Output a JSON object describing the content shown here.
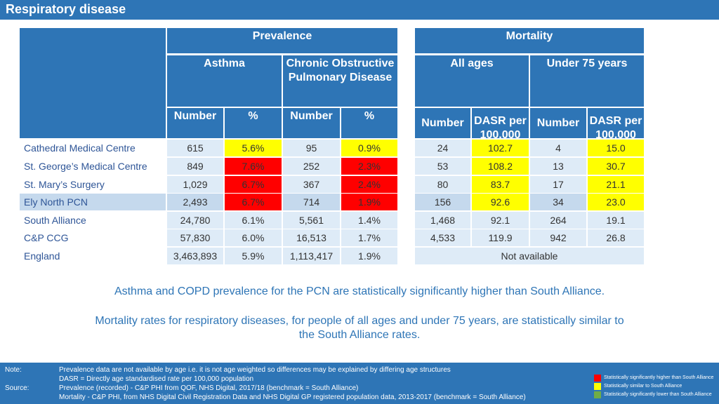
{
  "title": "Respiratory disease",
  "headers": {
    "prevalence": "Prevalence",
    "mortality": "Mortality",
    "asthma": "Asthma",
    "copd": "Chronic Obstructive Pulmonary Disease",
    "all_ages": "All ages",
    "under75": "Under 75 years",
    "number": "Number",
    "percent": "%",
    "dasr": "DASR per 100,000"
  },
  "rows": [
    {
      "name": "Cathedral Medical Centre",
      "asthma_n": "615",
      "asthma_p": "5.6%",
      "copd_n": "95",
      "copd_p": "0.9%",
      "all_n": "24",
      "all_dasr": "102.7",
      "u75_n": "4",
      "u75_dasr": "15.0"
    },
    {
      "name": "St. George’s Medical Centre",
      "asthma_n": "849",
      "asthma_p": "7.6%",
      "copd_n": "252",
      "copd_p": "2.3%",
      "all_n": "53",
      "all_dasr": "108.2",
      "u75_n": "13",
      "u75_dasr": "30.7"
    },
    {
      "name": "St. Mary’s Surgery",
      "asthma_n": "1,029",
      "asthma_p": "6.7%",
      "copd_n": "367",
      "copd_p": "2.4%",
      "all_n": "80",
      "all_dasr": "83.7",
      "u75_n": "17",
      "u75_dasr": "21.1"
    },
    {
      "name": "Ely North PCN",
      "asthma_n": "2,493",
      "asthma_p": "6.7%",
      "copd_n": "714",
      "copd_p": "1.9%",
      "all_n": "156",
      "all_dasr": "92.6",
      "u75_n": "34",
      "u75_dasr": "23.0"
    },
    {
      "name": "South Alliance",
      "asthma_n": "24,780",
      "asthma_p": "6.1%",
      "copd_n": "5,561",
      "copd_p": "1.4%",
      "all_n": "1,468",
      "all_dasr": "92.1",
      "u75_n": "264",
      "u75_dasr": "19.1"
    },
    {
      "name": "C&P CCG",
      "asthma_n": "57,830",
      "asthma_p": "6.0%",
      "copd_n": "16,513",
      "copd_p": "1.7%",
      "all_n": "4,533",
      "all_dasr": "119.9",
      "u75_n": "942",
      "u75_dasr": "26.8"
    },
    {
      "name": "England",
      "asthma_n": "3,463,893",
      "asthma_p": "5.9%",
      "copd_n": "1,113,417",
      "copd_p": "1.9%",
      "not_available": "Not available"
    }
  ],
  "messages": {
    "line1": "Asthma and COPD prevalence for the PCN are statistically significantly higher than South Alliance.",
    "line2": "Mortality rates for respiratory diseases, for people of all ages and under 75 years, are statistically similar to",
    "line3": "the South Alliance rates."
  },
  "footer": {
    "note_label": "Note:",
    "note1": "Prevalence data are not available by age i.e. it is not age weighted so differences may be explained by differing age structures",
    "note2": "DASR = Directly age standardised rate per 100,000 population",
    "source_label": "Source:",
    "source1": "Prevalence (recorded) - C&P PHI from QOF, NHS Digital, 2017/18 (benchmark = South Alliance)",
    "source2": "Mortality - C&P PHI, from NHS Digital Civil Registration Data and NHS Digital GP registered population data, 2013-2017 (benchmark = South Alliance)"
  },
  "legend": [
    {
      "label": "Statistically significantly higher than South Alliance",
      "color": "#FF0000"
    },
    {
      "label": "Statistically similar to South Alliance",
      "color": "#FFFF00"
    },
    {
      "label": "Statistically significantly lower than South Alliance",
      "color": "#70AD47"
    }
  ]
}
